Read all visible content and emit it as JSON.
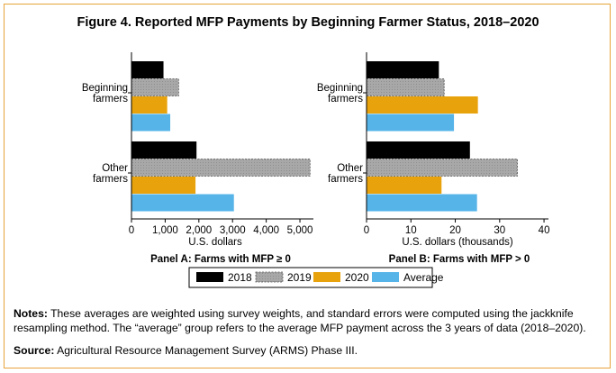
{
  "title": "Figure 4. Reported MFP Payments by Beginning Farmer Status, 2018–2020",
  "notes": {
    "label": "Notes:",
    "text": " These averages are weighted using survey weights, and standard errors were computed using the jackknife resampling method. The “average” group refers to the average MFP payment across the 3 years of data (2018–2020)."
  },
  "source": {
    "label": "Source:",
    "text": " Agricultural Resource Management Survey (ARMS) Phase III."
  },
  "colors": {
    "2018": "#000000",
    "2019": "#a6a6a6",
    "2020": "#e8a30c",
    "Average": "#56b4e9"
  },
  "chart_data": [
    {
      "type": "bar",
      "orientation": "horizontal",
      "panel_label": "Panel A: Farms with MFP ≥ 0",
      "xlabel": "U.S. dollars",
      "xlim": [
        0,
        5400
      ],
      "xticks": [
        0,
        1000,
        2000,
        3000,
        4000,
        5000
      ],
      "xtick_labels": [
        "0",
        "1,000",
        "2,000",
        "3,000",
        "4,000",
        "5,000"
      ],
      "categories": [
        "Beginning farmers",
        "Other farmers"
      ],
      "category_lines": [
        [
          "Beginning",
          "farmers"
        ],
        [
          "Other",
          "farmers"
        ]
      ],
      "series": [
        {
          "name": "2018",
          "values": [
            950,
            1930
          ]
        },
        {
          "name": "2019",
          "values": [
            1400,
            5300
          ]
        },
        {
          "name": "2020",
          "values": [
            1060,
            1900
          ]
        },
        {
          "name": "Average",
          "values": [
            1150,
            3040
          ]
        }
      ]
    },
    {
      "type": "bar",
      "orientation": "horizontal",
      "panel_label": "Panel B: Farms with MFP > 0",
      "xlabel": "U.S. dollars (thousands)",
      "xlim": [
        0,
        41
      ],
      "xticks": [
        0,
        10,
        20,
        30,
        40
      ],
      "xtick_labels": [
        "0",
        "10",
        "20",
        "30",
        "40"
      ],
      "categories": [
        "Beginning farmers",
        "Other farmers"
      ],
      "category_lines": [
        [
          "Beginning",
          "farmers"
        ],
        [
          "Other",
          "farmers"
        ]
      ],
      "series": [
        {
          "name": "2018",
          "values": [
            16.3,
            23.3
          ]
        },
        {
          "name": "2019",
          "values": [
            17.5,
            34.0
          ]
        },
        {
          "name": "2020",
          "values": [
            25.1,
            16.9
          ]
        },
        {
          "name": "Average",
          "values": [
            19.7,
            24.9
          ]
        }
      ]
    }
  ],
  "legend": [
    "2018",
    "2019",
    "2020",
    "Average"
  ]
}
